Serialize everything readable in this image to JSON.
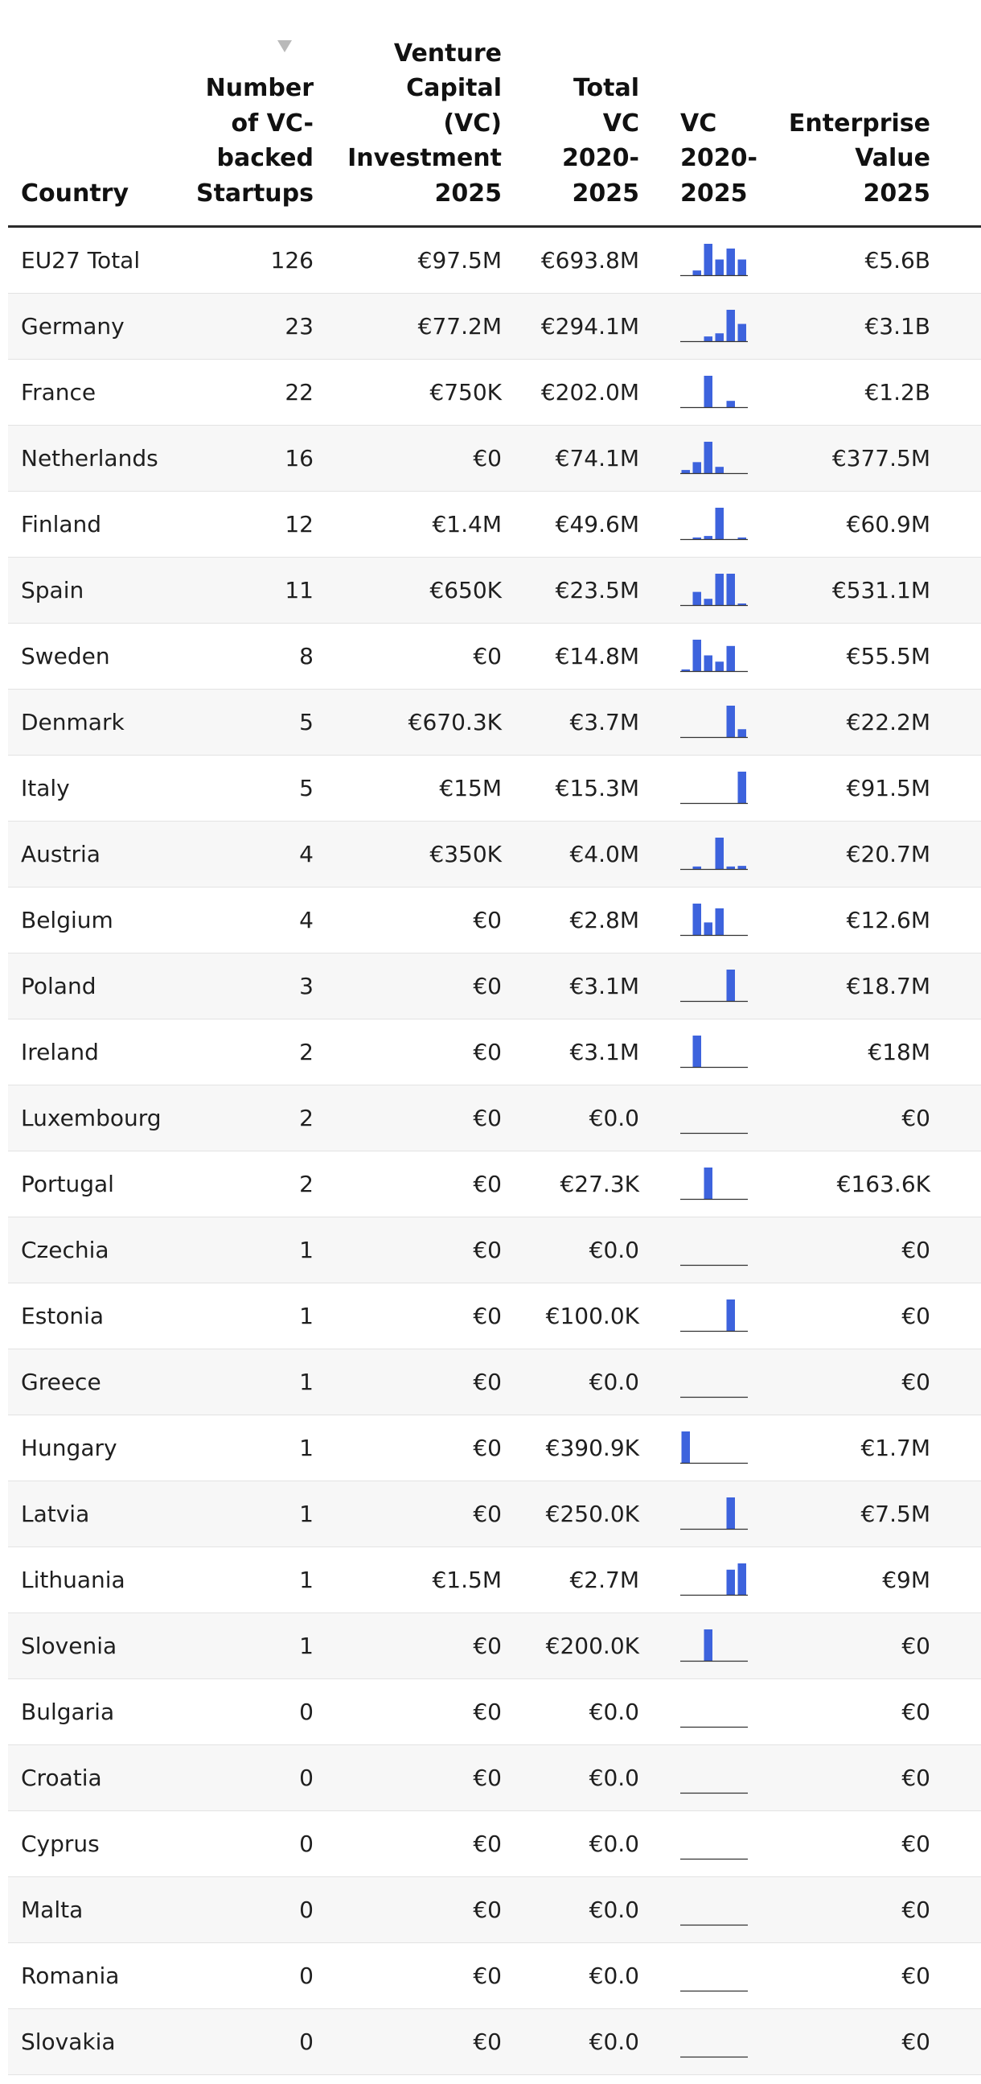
{
  "colors": {
    "bar": "#3d63dd",
    "baseline": "#333333",
    "header_rule": "#2b2b2b",
    "row_alt": "#f7f7f7",
    "sort_arrow": "#b9b9b9"
  },
  "header": {
    "country": "Country",
    "startups": [
      "Number",
      "of VC-",
      "backed",
      "Startups"
    ],
    "vc_2025": [
      "Venture",
      "Capital",
      "(VC)",
      "Investment",
      "2025"
    ],
    "total_vc": [
      "Total",
      "VC",
      "2020-",
      "2025"
    ],
    "vc_trend": [
      "VC",
      "2020-",
      "2025"
    ],
    "ev_2025": [
      "Enterprise",
      "Value",
      "2025"
    ],
    "sort_icon": "sort-descending-triangle"
  },
  "rows": [
    {
      "country": "EU27 Total",
      "startups": "126",
      "vc_2025": "€97.5M",
      "total_vc": "€693.8M",
      "ev_2025": "€5.6B",
      "trend": [
        0,
        0.15,
        1.0,
        0.5,
        0.85,
        0.5
      ]
    },
    {
      "country": "Germany",
      "startups": "23",
      "vc_2025": "€77.2M",
      "total_vc": "€294.1M",
      "ev_2025": "€3.1B",
      "trend": [
        0,
        0,
        0.15,
        0.25,
        1.0,
        0.55
      ]
    },
    {
      "country": "France",
      "startups": "22",
      "vc_2025": "€750K",
      "total_vc": "€202.0M",
      "ev_2025": "€1.2B",
      "trend": [
        0,
        0,
        1.0,
        0,
        0.2,
        0
      ]
    },
    {
      "country": "Netherlands",
      "startups": "16",
      "vc_2025": "€0",
      "total_vc": "€74.1M",
      "ev_2025": "€377.5M",
      "trend": [
        0.1,
        0.35,
        1.0,
        0.2,
        0,
        0
      ]
    },
    {
      "country": "Finland",
      "startups": "12",
      "vc_2025": "€1.4M",
      "total_vc": "€49.6M",
      "ev_2025": "€60.9M",
      "trend": [
        0,
        0.05,
        0.1,
        1.0,
        0,
        0.03
      ]
    },
    {
      "country": "Spain",
      "startups": "11",
      "vc_2025": "€650K",
      "total_vc": "€23.5M",
      "ev_2025": "€531.1M",
      "trend": [
        0,
        0.42,
        0.2,
        1.0,
        1.0,
        0.05
      ]
    },
    {
      "country": "Sweden",
      "startups": "8",
      "vc_2025": "€0",
      "total_vc": "€14.8M",
      "ev_2025": "€55.5M",
      "trend": [
        0.05,
        1.0,
        0.5,
        0.3,
        0.8,
        0
      ]
    },
    {
      "country": "Denmark",
      "startups": "5",
      "vc_2025": "€670.3K",
      "total_vc": "€3.7M",
      "ev_2025": "€22.2M",
      "trend": [
        0,
        0,
        0,
        0,
        1.0,
        0.25
      ]
    },
    {
      "country": "Italy",
      "startups": "5",
      "vc_2025": "€15M",
      "total_vc": "€15.3M",
      "ev_2025": "€91.5M",
      "trend": [
        0,
        0,
        0,
        0,
        0,
        1.0
      ]
    },
    {
      "country": "Austria",
      "startups": "4",
      "vc_2025": "€350K",
      "total_vc": "€4.0M",
      "ev_2025": "€20.7M",
      "trend": [
        0,
        0.08,
        0,
        1.0,
        0.08,
        0.1
      ]
    },
    {
      "country": "Belgium",
      "startups": "4",
      "vc_2025": "€0",
      "total_vc": "€2.8M",
      "ev_2025": "€12.6M",
      "trend": [
        0,
        1.0,
        0.4,
        0.85,
        0,
        0
      ]
    },
    {
      "country": "Poland",
      "startups": "3",
      "vc_2025": "€0",
      "total_vc": "€3.1M",
      "ev_2025": "€18.7M",
      "trend": [
        0,
        0,
        0,
        0,
        1.0,
        0
      ]
    },
    {
      "country": "Ireland",
      "startups": "2",
      "vc_2025": "€0",
      "total_vc": "€3.1M",
      "ev_2025": "€18M",
      "trend": [
        0,
        1.0,
        0,
        0,
        0,
        0
      ]
    },
    {
      "country": "Luxembourg",
      "startups": "2",
      "vc_2025": "€0",
      "total_vc": "€0.0",
      "ev_2025": "€0",
      "trend": [
        0,
        0,
        0,
        0,
        0,
        0
      ]
    },
    {
      "country": "Portugal",
      "startups": "2",
      "vc_2025": "€0",
      "total_vc": "€27.3K",
      "ev_2025": "€163.6K",
      "trend": [
        0,
        0,
        1.0,
        0,
        0,
        0
      ]
    },
    {
      "country": "Czechia",
      "startups": "1",
      "vc_2025": "€0",
      "total_vc": "€0.0",
      "ev_2025": "€0",
      "trend": [
        0,
        0,
        0,
        0,
        0,
        0
      ]
    },
    {
      "country": "Estonia",
      "startups": "1",
      "vc_2025": "€0",
      "total_vc": "€100.0K",
      "ev_2025": "€0",
      "trend": [
        0,
        0,
        0,
        0,
        1.0,
        0
      ]
    },
    {
      "country": "Greece",
      "startups": "1",
      "vc_2025": "€0",
      "total_vc": "€0.0",
      "ev_2025": "€0",
      "trend": [
        0,
        0,
        0,
        0,
        0,
        0
      ]
    },
    {
      "country": "Hungary",
      "startups": "1",
      "vc_2025": "€0",
      "total_vc": "€390.9K",
      "ev_2025": "€1.7M",
      "trend": [
        1.0,
        0,
        0,
        0,
        0,
        0
      ]
    },
    {
      "country": "Latvia",
      "startups": "1",
      "vc_2025": "€0",
      "total_vc": "€250.0K",
      "ev_2025": "€7.5M",
      "trend": [
        0,
        0,
        0,
        0,
        1.0,
        0
      ]
    },
    {
      "country": "Lithuania",
      "startups": "1",
      "vc_2025": "€1.5M",
      "total_vc": "€2.7M",
      "ev_2025": "€9M",
      "trend": [
        0,
        0,
        0,
        0,
        0.8,
        1.0
      ]
    },
    {
      "country": "Slovenia",
      "startups": "1",
      "vc_2025": "€0",
      "total_vc": "€200.0K",
      "ev_2025": "€0",
      "trend": [
        0,
        0,
        1.0,
        0,
        0,
        0
      ]
    },
    {
      "country": "Bulgaria",
      "startups": "0",
      "vc_2025": "€0",
      "total_vc": "€0.0",
      "ev_2025": "€0",
      "trend": [
        0,
        0,
        0,
        0,
        0,
        0
      ]
    },
    {
      "country": "Croatia",
      "startups": "0",
      "vc_2025": "€0",
      "total_vc": "€0.0",
      "ev_2025": "€0",
      "trend": [
        0,
        0,
        0,
        0,
        0,
        0
      ]
    },
    {
      "country": "Cyprus",
      "startups": "0",
      "vc_2025": "€0",
      "total_vc": "€0.0",
      "ev_2025": "€0",
      "trend": [
        0,
        0,
        0,
        0,
        0,
        0
      ]
    },
    {
      "country": "Malta",
      "startups": "0",
      "vc_2025": "€0",
      "total_vc": "€0.0",
      "ev_2025": "€0",
      "trend": [
        0,
        0,
        0,
        0,
        0,
        0
      ]
    },
    {
      "country": "Romania",
      "startups": "0",
      "vc_2025": "€0",
      "total_vc": "€0.0",
      "ev_2025": "€0",
      "trend": [
        0,
        0,
        0,
        0,
        0,
        0
      ]
    },
    {
      "country": "Slovakia",
      "startups": "0",
      "vc_2025": "€0",
      "total_vc": "€0.0",
      "ev_2025": "€0",
      "trend": [
        0,
        0,
        0,
        0,
        0,
        0
      ]
    }
  ]
}
